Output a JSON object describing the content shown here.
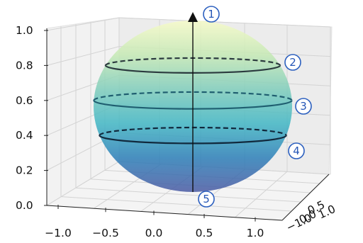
{
  "chart_data": {
    "type": "3d-surface",
    "title": "",
    "xlabel": "",
    "ylabel": "",
    "zlabel": "",
    "grid": true,
    "xlim": [
      -1.25,
      1.25
    ],
    "ylim": [
      -1.25,
      1.25
    ],
    "zlim": [
      0.0,
      1.0
    ],
    "x_ticks": [
      "−1.0",
      "−0.5",
      "0.0",
      "0.5",
      "1.0"
    ],
    "y_ticks": [
      "1.0",
      "0.5",
      "0.0",
      "−1.0"
    ],
    "z_ticks": [
      "0.0",
      "0.2",
      "0.4",
      "0.6",
      "0.8",
      "1.0"
    ],
    "surface": {
      "shape": "sphere",
      "colormap": [
        "#f7fbc8",
        "#c5e9b4",
        "#7fcdbb",
        "#41b6c4",
        "#2c7fb8",
        "#4a5aa3"
      ],
      "opacity": 0.85
    },
    "contour_rings": [
      {
        "z": 0.8,
        "color": "#2b3a3e"
      },
      {
        "z": 0.6,
        "color": "#1f5e70"
      },
      {
        "z": 0.4,
        "color": "#11293d"
      }
    ],
    "axis_arrow": {
      "z_min": 0.0,
      "z_max": 1.0,
      "color": "#111111"
    },
    "markers": [
      {
        "label": "1",
        "color": "#2b5fbf"
      },
      {
        "label": "2",
        "color": "#2b5fbf"
      },
      {
        "label": "3",
        "color": "#2b5fbf"
      },
      {
        "label": "4",
        "color": "#2b5fbf"
      },
      {
        "label": "5",
        "color": "#2b5fbf"
      }
    ]
  }
}
